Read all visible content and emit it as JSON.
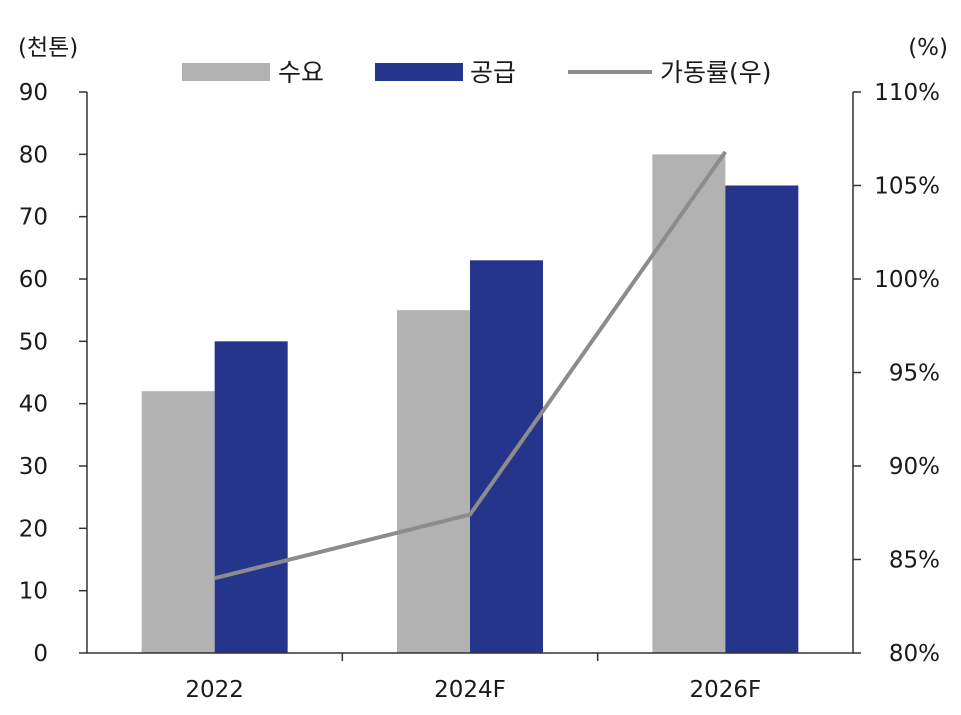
{
  "chart_data": {
    "type": "bar",
    "categories": [
      "2022",
      "2024F",
      "2026F"
    ],
    "series": [
      {
        "name": "수요",
        "type": "bar",
        "axis": "left",
        "color": "#b2b2b2",
        "values": [
          42,
          55,
          80
        ]
      },
      {
        "name": "공급",
        "type": "bar",
        "axis": "left",
        "color": "#25358c",
        "values": [
          50,
          63,
          75
        ]
      },
      {
        "name": "가동률(우)",
        "type": "line",
        "axis": "right",
        "color": "#8c8c8c",
        "values": [
          84.0,
          87.4,
          106.8
        ]
      }
    ],
    "left_axis": {
      "unit": "(천톤)",
      "ticks": [
        0,
        10,
        20,
        30,
        40,
        50,
        60,
        70,
        80,
        90
      ],
      "ylim": [
        0,
        90
      ]
    },
    "right_axis": {
      "unit": "(%)",
      "ticks": [
        "80%",
        "85%",
        "90%",
        "95%",
        "100%",
        "105%",
        "110%"
      ],
      "ylim": [
        80,
        110
      ]
    },
    "legend": "top",
    "grid": false
  }
}
